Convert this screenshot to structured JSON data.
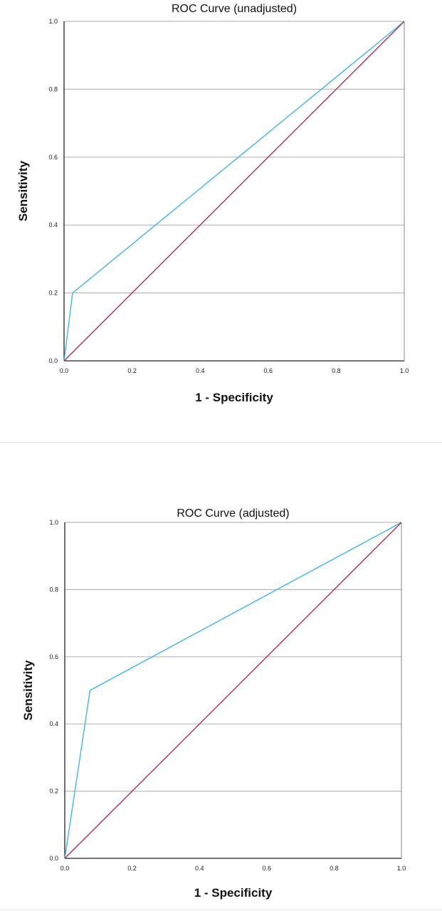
{
  "chart_data": [
    {
      "type": "line",
      "title": "ROC Curve (unadjusted)",
      "xlabel": "1 - Specificity",
      "ylabel": "Sensitivity",
      "xlim": [
        0,
        1
      ],
      "ylim": [
        0,
        1
      ],
      "xticks": [
        "0.0",
        "0.2",
        "0.4",
        "0.6",
        "0.8",
        "1.0"
      ],
      "yticks": [
        "0.0",
        "0.2",
        "0.4",
        "0.6",
        "0.8",
        "1.0"
      ],
      "grid": "horizontal",
      "series": [
        {
          "color": "#3fb5f0",
          "x": [
            0.0,
            0.025,
            1.0
          ],
          "y": [
            0.0,
            0.2,
            1.0
          ]
        },
        {
          "color": "#b0304e",
          "x": [
            0.0,
            1.0
          ],
          "y": [
            0.0,
            1.0
          ]
        }
      ]
    },
    {
      "type": "line",
      "title": "ROC Curve (adjusted)",
      "xlabel": "1 - Specificity",
      "ylabel": "Sensitivity",
      "xlim": [
        0,
        1
      ],
      "ylim": [
        0,
        1
      ],
      "xticks": [
        "0.0",
        "0.2",
        "0.4",
        "0.6",
        "0.8",
        "1.0"
      ],
      "yticks": [
        "0.0",
        "0.2",
        "0.4",
        "0.6",
        "0.8",
        "1.0"
      ],
      "grid": "horizontal",
      "series": [
        {
          "color": "#3fb5f0",
          "x": [
            0.0,
            0.075,
            1.0
          ],
          "y": [
            0.0,
            0.5,
            1.0
          ]
        },
        {
          "color": "#b0304e",
          "x": [
            0.0,
            1.0
          ],
          "y": [
            0.0,
            1.0
          ]
        }
      ]
    }
  ]
}
